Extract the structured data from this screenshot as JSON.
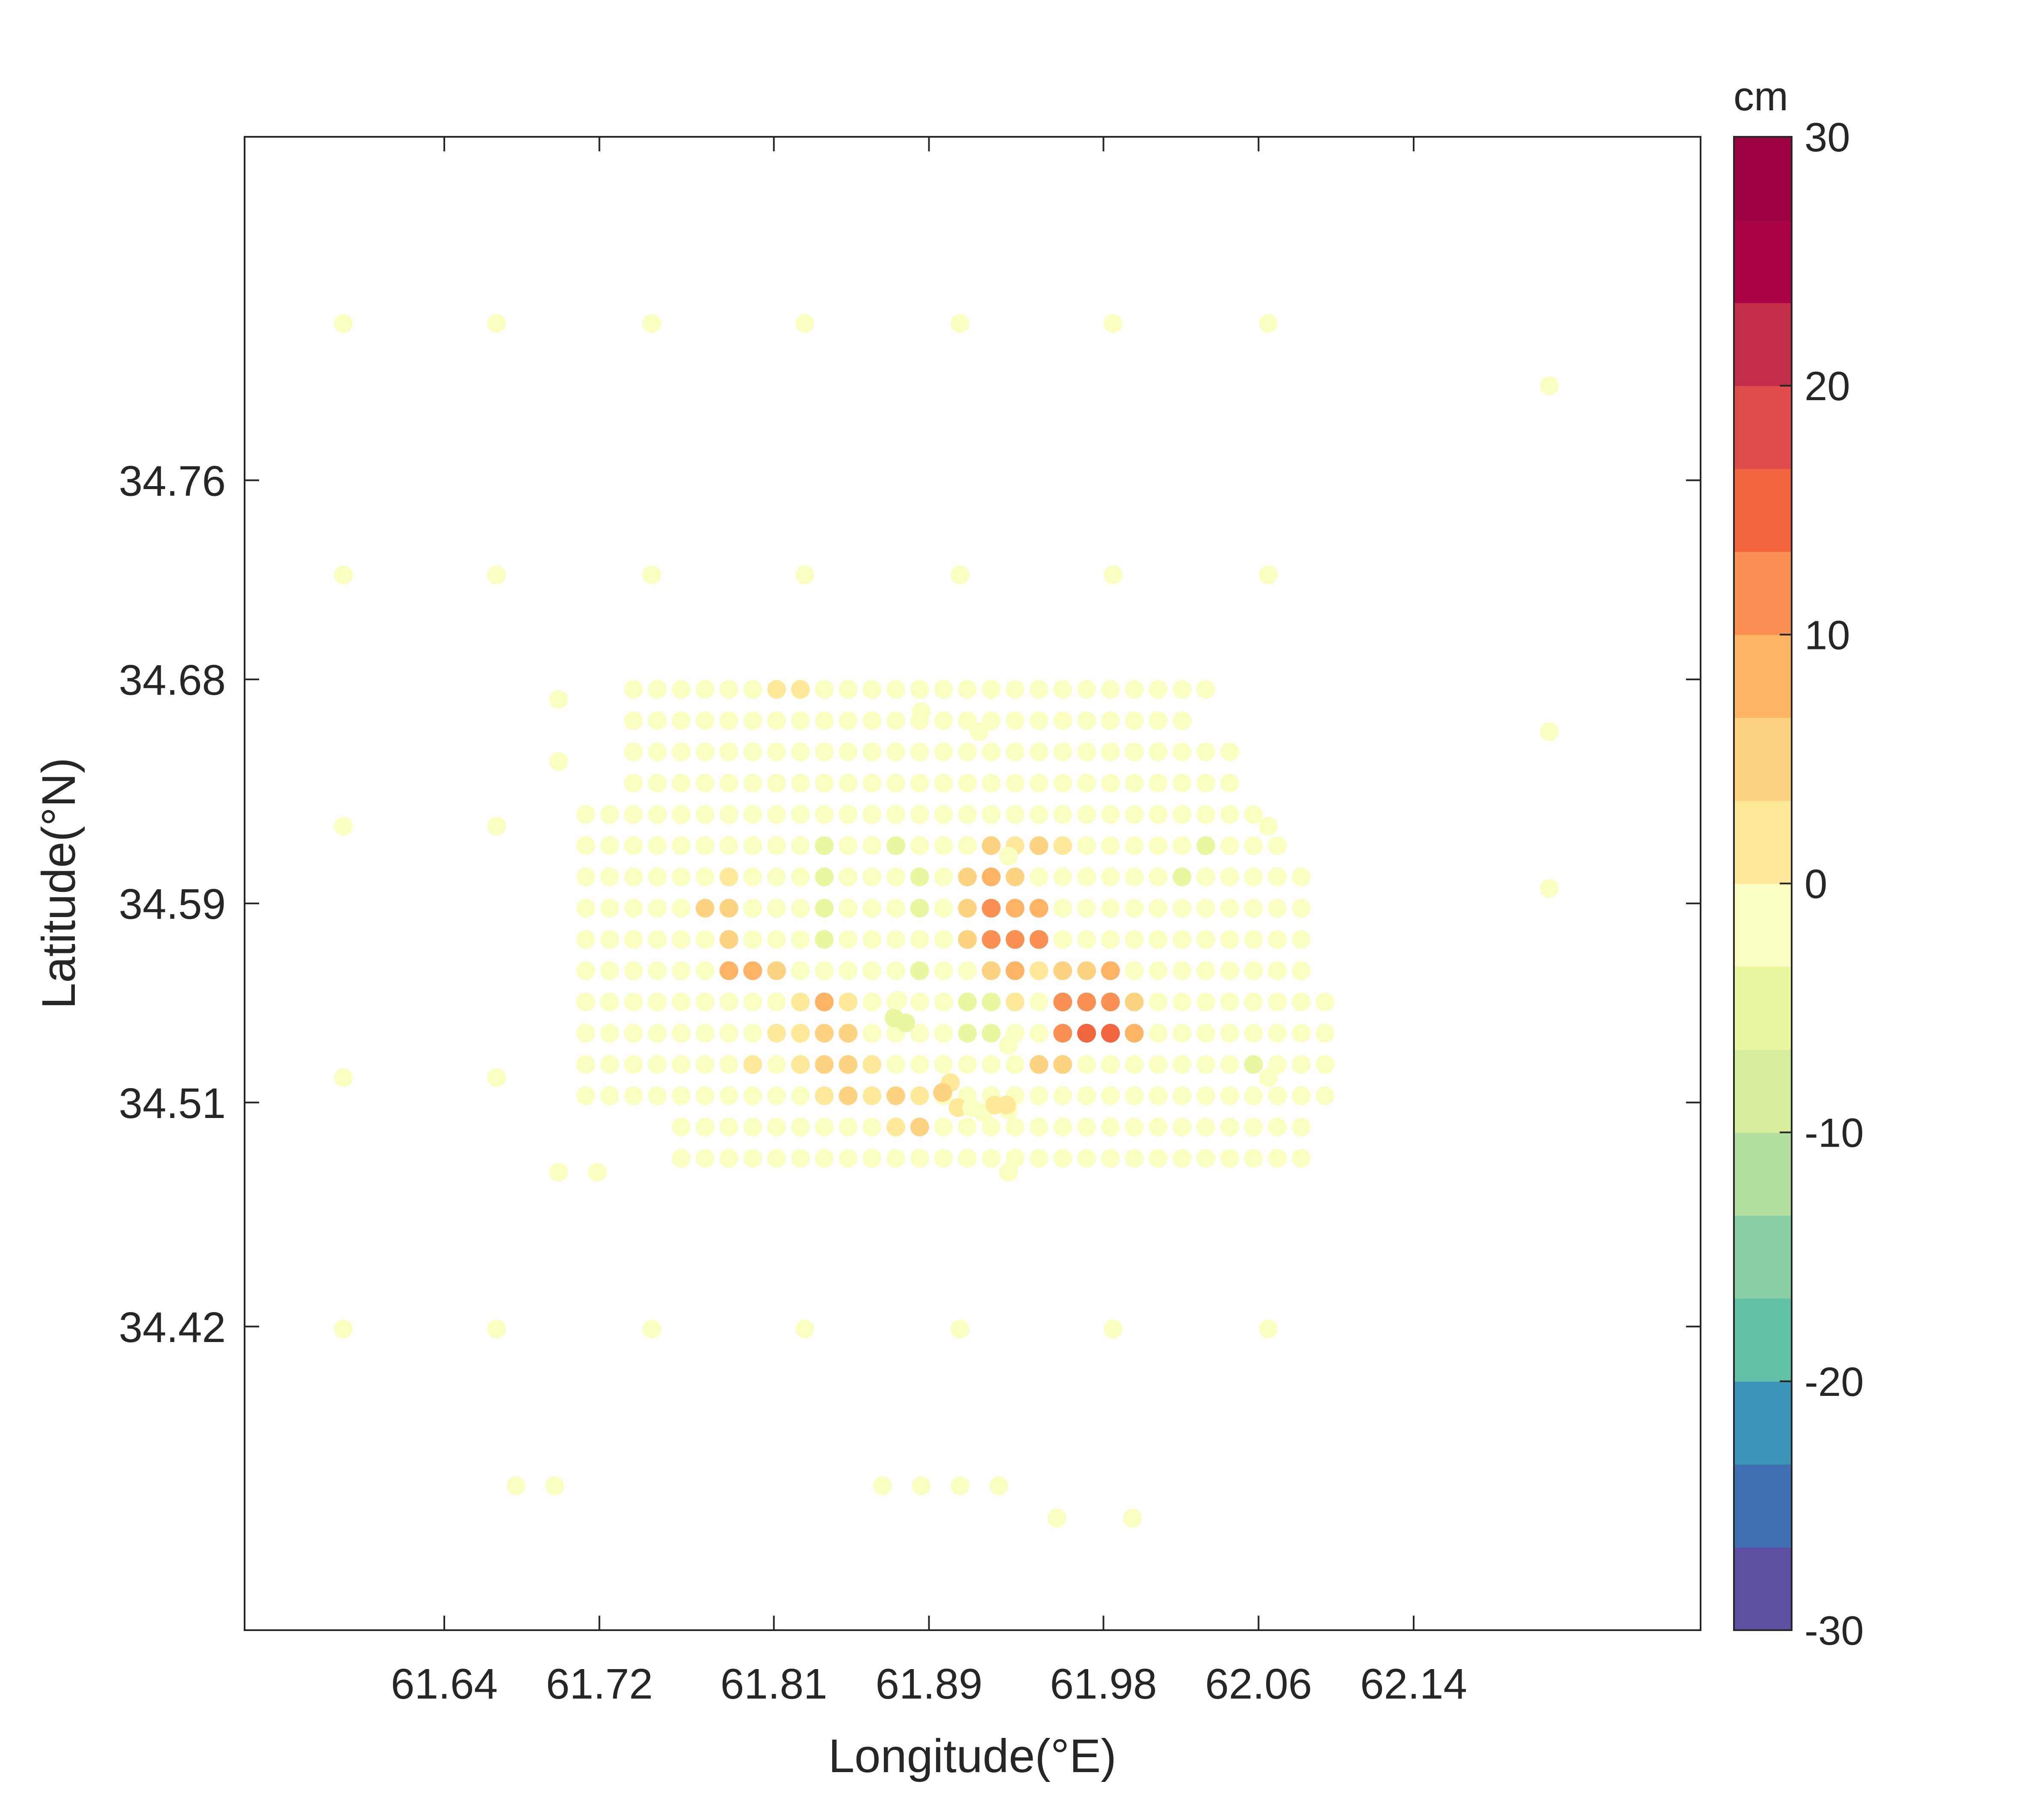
{
  "chart_data": {
    "type": "scatter",
    "xlabel": "Longitude(°E)",
    "ylabel": "Latitude(°N)",
    "xlim": [
      61.537,
      62.288
    ],
    "ylim": [
      34.298,
      34.898
    ],
    "x_ticks": [
      61.64,
      61.72,
      61.81,
      61.89,
      61.98,
      62.06,
      62.14
    ],
    "x_tick_labels": [
      "61.64",
      "61.72",
      "61.81",
      "61.89",
      "61.98",
      "62.06",
      "62.14"
    ],
    "y_ticks": [
      34.42,
      34.51,
      34.59,
      34.68,
      34.76
    ],
    "y_tick_labels": [
      "34.42",
      "34.51",
      "34.59",
      "34.68",
      "34.76"
    ],
    "grid": false,
    "colorbar": {
      "label": "cm",
      "range": [
        -30,
        30
      ],
      "levels": 18,
      "ticks": [
        30,
        20,
        10,
        0,
        -10,
        -20,
        -30
      ],
      "tick_labels": [
        "30",
        "20",
        "10",
        "0",
        "-10",
        "-20",
        "-30"
      ],
      "colors": [
        "#5e4fa2",
        "#3e6fb1",
        "#3c94b9",
        "#60c1a6",
        "#8ad0a4",
        "#b3e0a0",
        "#d6ee9b",
        "#eaf6a0",
        "#fafec0",
        "#fee89a",
        "#fdd382",
        "#fdb466",
        "#f99155",
        "#f1653f",
        "#de4d4b",
        "#c22d48",
        "#a90445",
        "#9e0142"
      ]
    },
    "grid_points": {
      "lon_start": 61.713,
      "lon_step": 0.0123,
      "lat_start": 34.676,
      "lat_step": -0.01256,
      "rows": [
        {
          "i0": 2,
          "values": [
            0,
            0,
            0,
            0,
            0,
            0,
            2,
            3,
            0,
            0,
            0,
            0,
            0,
            0,
            0,
            0,
            0,
            0,
            0,
            0,
            0,
            0,
            0,
            0,
            0
          ]
        },
        {
          "i0": 2,
          "values": [
            0,
            0,
            0,
            0,
            0,
            0,
            0,
            0,
            0,
            0,
            0,
            0,
            0,
            0,
            0,
            0,
            0,
            0,
            0,
            0,
            0,
            0,
            0,
            0
          ]
        },
        {
          "i0": 2,
          "values": [
            0,
            0,
            0,
            0,
            0,
            0,
            0,
            0,
            0,
            0,
            0,
            0,
            0,
            0,
            0,
            0,
            0,
            0,
            0,
            0,
            0,
            0,
            0,
            0,
            0,
            0
          ]
        },
        {
          "i0": 2,
          "values": [
            0,
            0,
            0,
            0,
            0,
            0,
            0,
            0,
            0,
            0,
            0,
            0,
            0,
            0,
            0,
            0,
            0,
            0,
            0,
            0,
            0,
            0,
            0,
            0,
            0,
            0
          ]
        },
        {
          "i0": 0,
          "values": [
            0,
            0,
            0,
            0,
            0,
            0,
            0,
            0,
            0,
            -1,
            0,
            -2,
            -3,
            0,
            0,
            0,
            0,
            0,
            0,
            0,
            0,
            0,
            0,
            0,
            -1,
            0,
            0,
            0,
            0
          ]
        },
        {
          "i0": 0,
          "values": [
            0,
            0,
            0,
            0,
            0,
            -1,
            0,
            0,
            0,
            -1,
            -4,
            -3,
            -2,
            -4,
            -1,
            0,
            0,
            4,
            3,
            4,
            3,
            0,
            0,
            0,
            -1,
            -3,
            -4,
            -2,
            -1,
            0
          ]
        },
        {
          "i0": 0,
          "values": [
            0,
            0,
            0,
            0,
            0,
            0,
            3,
            0,
            0,
            -2,
            -4,
            -3,
            -3,
            -3,
            -4,
            0,
            5,
            7,
            5,
            0,
            0,
            0,
            -1,
            -3,
            -3,
            -4,
            -3,
            -2,
            -1,
            0,
            0
          ]
        },
        {
          "i0": 0,
          "values": [
            0,
            0,
            0,
            0,
            0,
            4,
            6,
            0,
            -1,
            -2,
            -4,
            -3,
            -3,
            -3,
            -4,
            -1,
            5,
            10,
            8,
            7,
            0,
            0,
            -1,
            -3,
            -3,
            -3,
            -3,
            -3,
            -2,
            -1,
            0
          ]
        },
        {
          "i0": 0,
          "values": [
            0,
            0,
            0,
            0,
            0,
            0,
            6,
            0,
            -1,
            -2,
            -4,
            -3,
            -3,
            -3,
            -3,
            -1,
            4,
            10,
            12,
            10,
            0,
            0,
            -1,
            -3,
            -3,
            -3,
            -3,
            -3,
            -2,
            -1,
            0
          ]
        },
        {
          "i0": 0,
          "values": [
            0,
            0,
            0,
            0,
            0,
            0,
            7,
            8,
            5,
            0,
            -2,
            -2,
            -3,
            -3,
            -4,
            -2,
            0,
            4,
            8,
            3,
            6,
            6,
            8,
            0,
            -2,
            -3,
            -3,
            -3,
            -2,
            -1,
            0
          ]
        },
        {
          "i0": 0,
          "values": [
            0,
            0,
            0,
            0,
            0,
            0,
            0,
            0,
            0,
            2,
            7,
            1,
            0,
            -1,
            -3,
            -2,
            -6,
            -6,
            3,
            0,
            10,
            12,
            13,
            6,
            0,
            -1,
            -3,
            -3,
            -3,
            -3,
            -1,
            0
          ]
        },
        {
          "i0": 0,
          "values": [
            0,
            0,
            0,
            0,
            0,
            0,
            0,
            0,
            2,
            3,
            6,
            4,
            0,
            0,
            -2,
            -3,
            -4,
            -5,
            -3,
            0,
            12,
            14,
            15,
            9,
            0,
            -1,
            -2,
            -3,
            -3,
            -2,
            -1,
            0
          ]
        },
        {
          "i0": 0,
          "values": [
            0,
            0,
            0,
            0,
            0,
            0,
            0,
            1,
            0,
            3,
            6,
            6,
            1,
            0,
            -1,
            -2,
            -3,
            -3,
            -1,
            4,
            5,
            0,
            0,
            0,
            0,
            -1,
            -3,
            -3,
            -4,
            -3,
            -2,
            0
          ]
        },
        {
          "i0": 0,
          "values": [
            0,
            0,
            0,
            0,
            0,
            0,
            0,
            0,
            0,
            0,
            3,
            5,
            2,
            5,
            3,
            0,
            -1,
            -2,
            -2,
            -1,
            0,
            -1,
            -2,
            -2,
            -3,
            -3,
            -3,
            -3,
            -3,
            -3,
            -1,
            0
          ]
        },
        {
          "i0": 4,
          "values": [
            0,
            0,
            0,
            0,
            0,
            0,
            0,
            0,
            0,
            3,
            4,
            0,
            0,
            0,
            0,
            -1,
            -3,
            -3,
            -3,
            -3,
            -3,
            -3,
            -3,
            -3,
            -3,
            -2,
            -1
          ]
        },
        {
          "i0": 4,
          "values": [
            0,
            0,
            0,
            0,
            0,
            0,
            0,
            0,
            0,
            0,
            0,
            0,
            0,
            0,
            0,
            0,
            0,
            0,
            0,
            0,
            0,
            0,
            0,
            0,
            0,
            0,
            0
          ]
        }
      ]
    },
    "extra_points": [
      {
        "x": 61.588,
        "y": 34.823,
        "v": 0
      },
      {
        "x": 61.667,
        "y": 34.823,
        "v": 0
      },
      {
        "x": 61.747,
        "y": 34.823,
        "v": 0
      },
      {
        "x": 61.826,
        "y": 34.823,
        "v": 0
      },
      {
        "x": 61.906,
        "y": 34.823,
        "v": 0
      },
      {
        "x": 61.985,
        "y": 34.823,
        "v": 0
      },
      {
        "x": 62.065,
        "y": 34.823,
        "v": 0
      },
      {
        "x": 62.21,
        "y": 34.798,
        "v": 0
      },
      {
        "x": 61.588,
        "y": 34.722,
        "v": 0
      },
      {
        "x": 61.667,
        "y": 34.722,
        "v": 0
      },
      {
        "x": 61.747,
        "y": 34.722,
        "v": 0
      },
      {
        "x": 61.826,
        "y": 34.722,
        "v": 0
      },
      {
        "x": 61.906,
        "y": 34.722,
        "v": 0
      },
      {
        "x": 61.985,
        "y": 34.722,
        "v": 0
      },
      {
        "x": 62.065,
        "y": 34.722,
        "v": 0
      },
      {
        "x": 61.699,
        "y": 34.672,
        "v": 0
      },
      {
        "x": 61.699,
        "y": 34.647,
        "v": 0
      },
      {
        "x": 61.886,
        "y": 34.667,
        "v": 0
      },
      {
        "x": 61.916,
        "y": 34.659,
        "v": 0
      },
      {
        "x": 61.931,
        "y": 34.609,
        "v": 0
      },
      {
        "x": 62.21,
        "y": 34.659,
        "v": 0
      },
      {
        "x": 61.588,
        "y": 34.621,
        "v": 0
      },
      {
        "x": 61.667,
        "y": 34.621,
        "v": 0
      },
      {
        "x": 62.065,
        "y": 34.621,
        "v": 0
      },
      {
        "x": 62.21,
        "y": 34.596,
        "v": 0
      },
      {
        "x": 61.588,
        "y": 34.52,
        "v": 0
      },
      {
        "x": 61.667,
        "y": 34.52,
        "v": 0
      },
      {
        "x": 62.065,
        "y": 34.52,
        "v": 0
      },
      {
        "x": 61.931,
        "y": 34.533,
        "v": 0
      },
      {
        "x": 61.931,
        "y": 34.507,
        "v": 0
      },
      {
        "x": 61.931,
        "y": 34.482,
        "v": 0
      },
      {
        "x": 61.699,
        "y": 34.482,
        "v": 0
      },
      {
        "x": 61.719,
        "y": 34.482,
        "v": 0
      },
      {
        "x": 61.588,
        "y": 34.419,
        "v": 0
      },
      {
        "x": 61.667,
        "y": 34.419,
        "v": 0
      },
      {
        "x": 61.747,
        "y": 34.419,
        "v": 0
      },
      {
        "x": 61.826,
        "y": 34.419,
        "v": 0
      },
      {
        "x": 61.906,
        "y": 34.419,
        "v": 0
      },
      {
        "x": 61.985,
        "y": 34.419,
        "v": 0
      },
      {
        "x": 62.065,
        "y": 34.419,
        "v": 0
      },
      {
        "x": 61.677,
        "y": 34.356,
        "v": 0
      },
      {
        "x": 61.697,
        "y": 34.356,
        "v": 0
      },
      {
        "x": 61.866,
        "y": 34.356,
        "v": 0
      },
      {
        "x": 61.886,
        "y": 34.356,
        "v": 0
      },
      {
        "x": 61.906,
        "y": 34.356,
        "v": 0
      },
      {
        "x": 61.926,
        "y": 34.356,
        "v": 0
      },
      {
        "x": 61.956,
        "y": 34.343,
        "v": 0
      },
      {
        "x": 61.995,
        "y": 34.343,
        "v": 0
      },
      {
        "x": 61.872,
        "y": 34.544,
        "v": -5
      },
      {
        "x": 61.878,
        "y": 34.542,
        "v": -5
      },
      {
        "x": 61.874,
        "y": 34.551,
        "v": -3
      },
      {
        "x": 61.901,
        "y": 34.518,
        "v": 3
      },
      {
        "x": 61.897,
        "y": 34.514,
        "v": 5
      },
      {
        "x": 61.905,
        "y": 34.508,
        "v": 1
      },
      {
        "x": 61.912,
        "y": 34.508,
        "v": 0
      },
      {
        "x": 61.918,
        "y": 34.506,
        "v": 0
      },
      {
        "x": 61.924,
        "y": 34.509,
        "v": 2
      },
      {
        "x": 61.93,
        "y": 34.509,
        "v": 3
      }
    ]
  }
}
